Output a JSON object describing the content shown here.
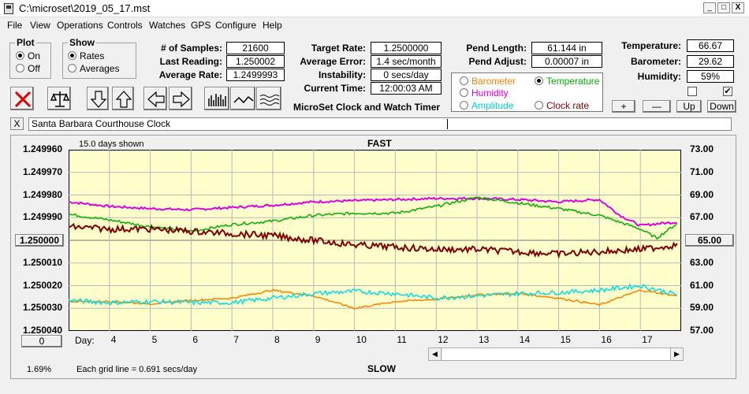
{
  "window": {
    "title": "C:\\microset\\2019_05_17.mst",
    "minimize": "_",
    "maximize": "□",
    "close": "X"
  },
  "menu": [
    "File",
    "View",
    "Operations",
    "Controls",
    "Watches",
    "GPS",
    "Configure",
    "Help"
  ],
  "plot_group": {
    "title": "Plot",
    "on": "On",
    "off": "Off",
    "selected": "On"
  },
  "show_group": {
    "title": "Show",
    "rates": "Rates",
    "averages": "Averages",
    "selected": "Rates"
  },
  "stats": {
    "samples_label": "# of Samples:",
    "samples": "21600",
    "last_label": "Last Reading:",
    "last": "1.250002",
    "avg_label": "Average Rate:",
    "avg": "1.2499993"
  },
  "rates": {
    "target_label": "Target Rate:",
    "target": "1.2500000",
    "error_label": "Average Error:",
    "error": "1.4 sec/month",
    "instab_label": "Instability:",
    "instab": "0 secs/day",
    "time_label": "Current Time:",
    "time": "12:00:03 AM"
  },
  "app_caption": "MicroSet Clock and Watch Timer",
  "pend": {
    "length_label": "Pend Length:",
    "length": "61.144 in",
    "adjust_label": "Pend Adjust:",
    "adjust": "0.00007 in"
  },
  "legend": {
    "barometer": "Barometer",
    "temperature": "Temperature",
    "humidity": "Humidity",
    "amplitude": "Amplitude",
    "clock_rate": "Clock rate",
    "selected": "Temperature"
  },
  "environment": {
    "temp_label": "Temperature:",
    "temp": "66.67",
    "baro_label": "Barometer:",
    "baro": "29.62",
    "hum_label": "Humidity:",
    "hum": "59%",
    "check1": false,
    "check2": true
  },
  "scale_buttons": {
    "plus": "+",
    "minus": "—",
    "up": "Up",
    "down": "Down"
  },
  "watch_close": "X",
  "watch_name": "Santa Barbara Courthouse Clock",
  "colors": {
    "barometer": "#ff8000",
    "temperature": "#00b000",
    "humidity": "#e000e0",
    "amplitude": "#00e0e0",
    "clock_rate": "#800000",
    "plot_bg": "#ffffcc"
  },
  "chart_data": {
    "type": "line",
    "title": "FAST",
    "bottom_label": "SLOW",
    "days_shown": "15.0 days shown",
    "grid_note": "Each grid line = 0.691 secs/day",
    "percent": "1.69%",
    "day_label": "Day:",
    "x_ticks": [
      4,
      5,
      6,
      7,
      8,
      9,
      10,
      11,
      12,
      13,
      14,
      15,
      16,
      17
    ],
    "xlim": [
      3.0,
      18.0
    ],
    "left_axis": {
      "ticks": [
        "1.249960",
        "1.249970",
        "1.249980",
        "1.249990",
        "1.250000",
        "1.250010",
        "1.250020",
        "1.250030",
        "1.250040"
      ],
      "center_value": "1.250000",
      "bottom_button": "0",
      "ylim": [
        1.24996,
        1.25004
      ]
    },
    "right_axis": {
      "ticks": [
        "73.00",
        "71.00",
        "69.00",
        "67.00",
        "65.00",
        "63.00",
        "61.00",
        "59.00",
        "57.00"
      ],
      "center_value": "65.00",
      "ylim": [
        57,
        73
      ]
    },
    "series": [
      {
        "name": "Humidity",
        "color": "#e000e0",
        "width": 2,
        "x": [
          3.0,
          4.0,
          5.0,
          6.0,
          7.0,
          8.0,
          9.0,
          10.0,
          11.0,
          12.0,
          13.0,
          14.0,
          15.0,
          16.0,
          16.5,
          17.0,
          17.5,
          17.9
        ],
        "y": [
          68.4,
          68.0,
          67.8,
          67.7,
          67.9,
          68.1,
          68.4,
          68.5,
          68.6,
          68.7,
          68.7,
          68.6,
          68.4,
          68.6,
          67.2,
          66.3,
          66.5,
          66.6
        ],
        "noise": 0.1
      },
      {
        "name": "Temperature",
        "color": "#00b000",
        "width": 1.5,
        "x": [
          3.0,
          4.0,
          5.0,
          6.0,
          7.0,
          8.0,
          9.0,
          10.0,
          11.0,
          12.0,
          13.0,
          14.0,
          15.0,
          16.0,
          17.0,
          17.4,
          17.9
        ],
        "y": [
          67.3,
          66.8,
          66.2,
          65.8,
          66.4,
          66.7,
          67.2,
          67.4,
          67.4,
          68.0,
          68.8,
          68.3,
          67.8,
          67.2,
          66.0,
          65.2,
          66.5
        ],
        "noise": 0.12
      },
      {
        "name": "Clock rate",
        "color": "#800000",
        "width": 2,
        "x": [
          3.0,
          4.0,
          5.0,
          6.0,
          7.0,
          8.0,
          9.0,
          10.0,
          11.0,
          12.0,
          13.0,
          14.0,
          15.0,
          16.0,
          17.0,
          17.9
        ],
        "y": [
          1.249994,
          1.249995,
          1.249995,
          1.249996,
          1.249997,
          1.249998,
          1.25,
          1.250002,
          1.250003,
          1.250004,
          1.250004,
          1.250005,
          1.250006,
          1.250005,
          1.250004,
          1.250002
        ],
        "noise": 1.4e-06
      },
      {
        "name": "Barometer",
        "color": "#ff8000",
        "width": 1.5,
        "x": [
          3.0,
          4.0,
          5.0,
          6.0,
          7.0,
          8.0,
          9.0,
          10.0,
          11.0,
          12.0,
          13.0,
          14.0,
          15.0,
          16.0,
          17.0,
          17.9
        ],
        "y": [
          59.6,
          59.6,
          59.4,
          59.7,
          59.9,
          60.6,
          60.1,
          59.0,
          59.6,
          59.8,
          60.2,
          60.3,
          59.9,
          59.3,
          60.6,
          60.1
        ],
        "noise": 0.08
      },
      {
        "name": "Amplitude",
        "color": "#00e0e0",
        "width": 1.5,
        "x": [
          3.0,
          4.0,
          5.0,
          6.0,
          7.0,
          8.0,
          9.0,
          10.0,
          11.0,
          12.0,
          13.0,
          14.0,
          15.0,
          16.0,
          17.0,
          17.9
        ],
        "y": [
          59.7,
          59.5,
          59.6,
          59.5,
          59.5,
          59.9,
          60.3,
          60.5,
          60.3,
          59.9,
          60.1,
          60.3,
          60.4,
          60.6,
          61.0,
          60.2
        ],
        "noise": 0.2
      }
    ]
  }
}
